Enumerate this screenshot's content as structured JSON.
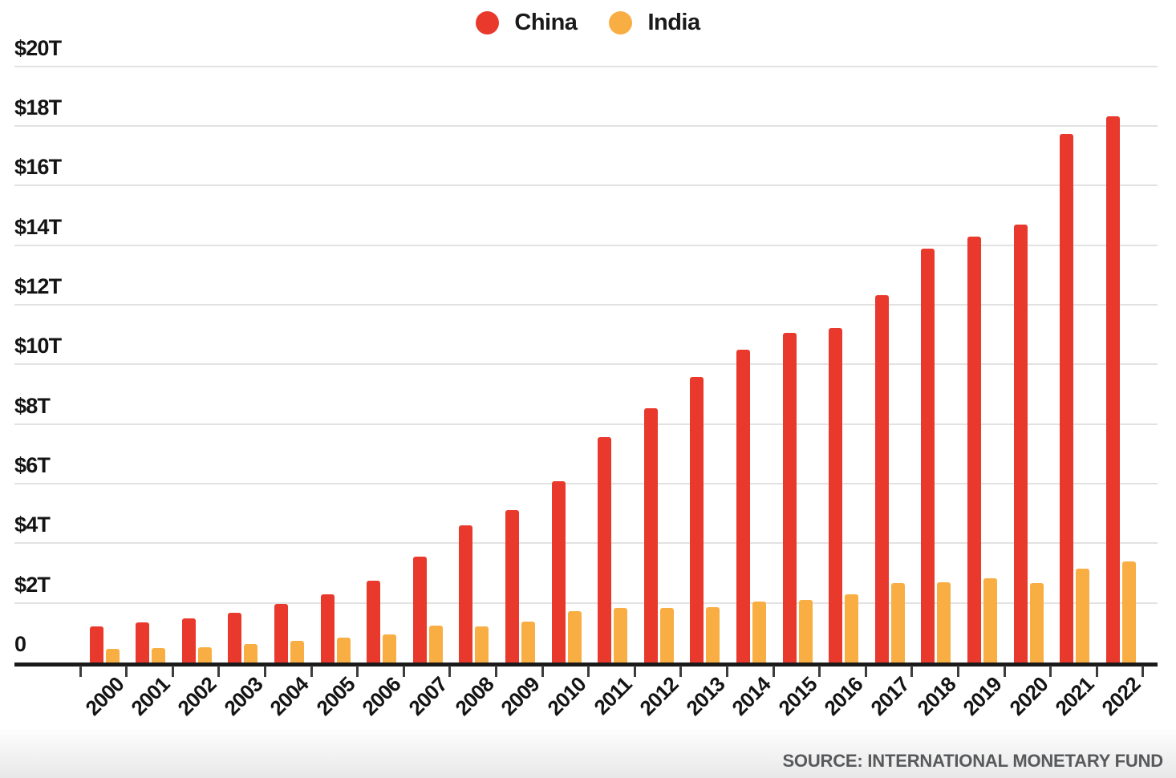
{
  "chart_data": {
    "type": "bar",
    "categories": [
      "2000",
      "2001",
      "2002",
      "2003",
      "2004",
      "2005",
      "2006",
      "2007",
      "2008",
      "2009",
      "2010",
      "2011",
      "2012",
      "2013",
      "2014",
      "2015",
      "2016",
      "2017",
      "2018",
      "2019",
      "2020",
      "2021",
      "2022"
    ],
    "series": [
      {
        "name": "China",
        "color": "#e9392c",
        "values": [
          1.21,
          1.34,
          1.47,
          1.66,
          1.96,
          2.29,
          2.75,
          3.55,
          4.59,
          5.1,
          6.09,
          7.55,
          8.53,
          9.57,
          10.48,
          11.06,
          11.23,
          12.31,
          13.89,
          14.28,
          14.69,
          17.73,
          18.32
        ]
      },
      {
        "name": "India",
        "color": "#f8ae42",
        "values": [
          0.47,
          0.49,
          0.52,
          0.62,
          0.72,
          0.83,
          0.95,
          1.24,
          1.22,
          1.37,
          1.71,
          1.82,
          1.83,
          1.86,
          2.04,
          2.1,
          2.29,
          2.65,
          2.7,
          2.83,
          2.67,
          3.15,
          3.39
        ]
      }
    ],
    "ylim": [
      0,
      20
    ],
    "y_ticks": [
      0,
      2,
      4,
      6,
      8,
      10,
      12,
      14,
      16,
      18,
      20
    ],
    "y_tick_labels": [
      "0",
      "$2T",
      "$4T",
      "$6T",
      "$8T",
      "$10T",
      "$12T",
      "$14T",
      "$16T",
      "$18T",
      "$20T"
    ],
    "xlabel": "",
    "ylabel": "",
    "grid": "horizontal",
    "legend_position": "top-center"
  },
  "source": {
    "text": "SOURCE: INTERNATIONAL MONETARY FUND"
  }
}
